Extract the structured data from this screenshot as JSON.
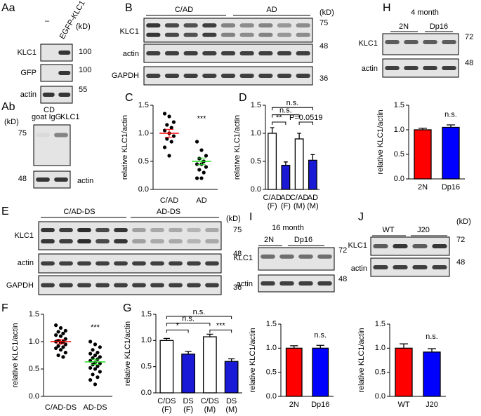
{
  "panel_labels": [
    "Aa",
    "Ab",
    "B",
    "C",
    "D",
    "E",
    "F",
    "G",
    "H",
    "I",
    "J"
  ],
  "blots": {
    "Aa": {
      "lanes": [
        "–",
        "EGFP-KLC1"
      ],
      "unit": "(kD)",
      "rows": [
        "KLC1",
        "GFP",
        "actin"
      ],
      "kd": [
        100,
        100,
        55
      ]
    },
    "Ab": {
      "lanes": [
        "CD",
        "goat IgG",
        "KLC1"
      ],
      "unit": "(kD)",
      "rows": [
        "actin"
      ],
      "kd": [
        75,
        48
      ]
    },
    "B": {
      "groups": [
        "C/AD",
        "AD"
      ],
      "unit": "(kD)",
      "rows": [
        "KLC1",
        "actin",
        "GAPDH"
      ],
      "kd": [
        75,
        48,
        36
      ]
    },
    "E": {
      "groups": [
        "C/AD-DS",
        "AD-DS"
      ],
      "unit": "(kD)",
      "rows": [
        "KLC1",
        "actin",
        "GAPDH"
      ],
      "kd": [
        75,
        48,
        36
      ]
    },
    "H": {
      "title": "4 month",
      "lanes": [
        "2N",
        "Dp16"
      ],
      "rows": [
        "KLC1",
        "actin"
      ],
      "kd": [
        72,
        48
      ]
    },
    "I": {
      "title": "16 month",
      "lanes": [
        "2N",
        "Dp16"
      ],
      "rows": [
        "KLC1",
        "actin"
      ],
      "kd": [
        72,
        48
      ]
    },
    "J": {
      "lanes": [
        "WT",
        "J20"
      ],
      "unit": "(kD)",
      "rows": [
        "KLC1",
        "actin"
      ],
      "kd": [
        72,
        48
      ]
    }
  },
  "chart_data": [
    {
      "type": "strip",
      "ylabel": "relative KLC1/actin",
      "categories": [
        "C/AD",
        "AD"
      ],
      "values": [
        [
          1.35,
          1.3,
          1.2,
          1.15,
          1.1,
          1.05,
          1.0,
          0.95,
          0.9,
          0.85,
          0.75,
          0.6
        ],
        [
          0.85,
          0.7,
          0.6,
          0.55,
          0.5,
          0.45,
          0.45,
          0.4,
          0.35,
          0.3,
          0.2,
          0.2
        ]
      ],
      "means": [
        1.0,
        0.5
      ],
      "sems": [
        0.07,
        0.06
      ],
      "mean_colors": [
        "#ff0000",
        "#22dd22"
      ],
      "color": "#000000",
      "annotations": [
        "***"
      ],
      "ylim": [
        0,
        1.5
      ],
      "yticks": [
        {
          "value": 0,
          "label": "0.0"
        },
        0.5,
        {
          "value": 1,
          "label": "1.0"
        },
        1.5
      ]
    },
    {
      "type": "bar",
      "ylabel": "relative KLC1/actin",
      "categories": [
        [
          "C/AD",
          "(F)"
        ],
        [
          "AD",
          "(F)"
        ],
        [
          "C/AD",
          "(M)"
        ],
        [
          "AD",
          "(M)"
        ]
      ],
      "values": [
        1.0,
        0.43,
        0.9,
        0.52
      ],
      "errors": [
        0.1,
        0.06,
        0.1,
        0.1
      ],
      "colors": [
        "#ffffff",
        "#1a1ad6",
        "#ffffff",
        "#1a1ad6"
      ],
      "annotations": [
        "**",
        "n.s.",
        "n.s.",
        "P=0.0519"
      ],
      "ylim": [
        0,
        1.5
      ],
      "yticks": [
        {
          "value": 0,
          "label": "0.0"
        },
        0.5,
        {
          "value": 1,
          "label": "1.0"
        },
        1.5
      ]
    },
    {
      "type": "strip",
      "ylabel": "relative KLC1/actin",
      "categories": [
        "C/AD-DS",
        "AD-DS"
      ],
      "values": [
        [
          1.3,
          1.25,
          1.2,
          1.18,
          1.15,
          1.12,
          1.1,
          1.05,
          1.02,
          1.0,
          1.0,
          0.98,
          0.95,
          0.92,
          0.9,
          0.88,
          0.85,
          0.8,
          0.75,
          0.72
        ],
        [
          1.0,
          0.95,
          0.9,
          0.85,
          0.8,
          0.78,
          0.75,
          0.72,
          0.7,
          0.68,
          0.65,
          0.62,
          0.6,
          0.58,
          0.55,
          0.52,
          0.5,
          0.45,
          0.4,
          0.35,
          0.3,
          0.22
        ]
      ],
      "means": [
        1.0,
        0.63
      ],
      "sems": [
        0.04,
        0.05
      ],
      "mean_colors": [
        "#ff0000",
        "#22dd22"
      ],
      "color": "#000000",
      "annotations": [
        "***"
      ],
      "ylim": [
        0,
        1.5
      ],
      "yticks": [
        {
          "value": 0,
          "label": "0.0"
        },
        0.5,
        {
          "value": 1,
          "label": "1.0"
        },
        1.5
      ]
    },
    {
      "type": "bar",
      "ylabel": "relative KLC1/actin",
      "categories": [
        [
          "C/DS",
          "(F)"
        ],
        [
          "DS",
          "(F)"
        ],
        [
          "C/DS",
          "(M)"
        ],
        [
          "DS",
          "(M)"
        ]
      ],
      "values": [
        1.0,
        0.74,
        1.07,
        0.6
      ],
      "errors": [
        0.04,
        0.05,
        0.05,
        0.05
      ],
      "colors": [
        "#ffffff",
        "#1a1ad6",
        "#ffffff",
        "#1a1ad6"
      ],
      "annotations": [
        "*",
        "n.s.",
        "n.s.",
        "***"
      ],
      "ylim": [
        0,
        1.5
      ],
      "yticks": [
        {
          "value": 0,
          "label": "0.0"
        },
        0.5,
        {
          "value": 1,
          "label": "1.0"
        },
        1.5
      ]
    },
    {
      "type": "bar",
      "ylabel": "relative KLC1/actin",
      "categories": [
        [
          "2N"
        ],
        [
          "Dp16"
        ]
      ],
      "values": [
        1.0,
        1.05
      ],
      "errors": [
        0.03,
        0.05
      ],
      "colors": [
        "#ff0000",
        "#0000ff"
      ],
      "annotations": [
        "n.s."
      ],
      "ylim": [
        0,
        1.5
      ],
      "yticks": [
        {
          "value": 0,
          "label": "0.0"
        },
        0.5,
        {
          "value": 1,
          "label": "1.0"
        },
        1.5
      ]
    },
    {
      "type": "bar",
      "ylabel": "relative KLC1/actin",
      "categories": [
        [
          "2N"
        ],
        [
          "Dp16"
        ]
      ],
      "values": [
        1.0,
        1.0
      ],
      "errors": [
        0.05,
        0.06
      ],
      "colors": [
        "#ff0000",
        "#0000ff"
      ],
      "annotations": [
        "n.s."
      ],
      "ylim": [
        0,
        1.5
      ],
      "yticks": [
        {
          "value": 0,
          "label": "0.0"
        },
        0.5,
        {
          "value": 1,
          "label": "1.0"
        },
        1.5
      ]
    },
    {
      "type": "bar",
      "ylabel": "relative KLC1/actin",
      "categories": [
        [
          "WT"
        ],
        [
          "J20"
        ]
      ],
      "values": [
        1.0,
        0.92
      ],
      "errors": [
        0.09,
        0.07
      ],
      "colors": [
        "#ff0000",
        "#0000ff"
      ],
      "annotations": [
        "n.s."
      ],
      "ylim": [
        0,
        1.5
      ],
      "yticks": [
        {
          "value": 0,
          "label": "0.0"
        },
        0.5,
        {
          "value": 1,
          "label": "1.0"
        },
        1.5
      ]
    }
  ]
}
